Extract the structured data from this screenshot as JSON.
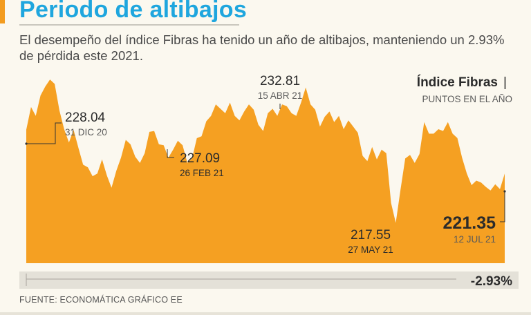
{
  "header": {
    "title": "Periodo de altibajos",
    "subtitle": "El desempeño del índice Fibras ha tenido un año de altibajos, manteniendo un 2.93% de pérdida este 2021."
  },
  "footer": {
    "source": "FUENTE: ECONOMÁTICA   GRÁFICO EE"
  },
  "colors": {
    "area": "#f5a022",
    "title": "#1fa6de",
    "text": "#2b2b2b",
    "muted": "#5a5a5a"
  },
  "chart_data": {
    "type": "area",
    "title": "Índice Fibras",
    "title_suffix": "|",
    "subtitle": "PUNTOS EN EL AÑO",
    "ylim": [
      213.0,
      235.5
    ],
    "values": [
      228.04,
      230.6,
      229.6,
      231.9,
      232.9,
      233.7,
      233.2,
      230.2,
      228.1,
      226.6,
      228.0,
      226.0,
      224.1,
      223.8,
      222.8,
      223.1,
      224.7,
      222.9,
      221.5,
      223.4,
      224.9,
      226.9,
      226.4,
      225.0,
      224.3,
      225.4,
      227.8,
      227.9,
      226.4,
      226.3,
      224.9,
      225.8,
      226.8,
      226.3,
      224.3,
      224.8,
      227.09,
      227.3,
      229.0,
      229.6,
      230.9,
      230.4,
      229.9,
      231.1,
      229.6,
      229.1,
      230.1,
      230.9,
      230.3,
      228.6,
      227.9,
      229.9,
      230.4,
      229.6,
      230.9,
      230.7,
      229.9,
      229.6,
      231.1,
      232.81,
      230.9,
      230.3,
      228.4,
      229.5,
      230.1,
      228.9,
      229.6,
      228.1,
      229.1,
      228.4,
      227.7,
      225.1,
      224.5,
      226.1,
      224.7,
      225.8,
      225.4,
      219.8,
      217.55,
      221.3,
      224.8,
      225.2,
      224.3,
      225.3,
      228.9,
      227.6,
      227.6,
      228.1,
      227.9,
      228.9,
      227.6,
      227.1,
      224.9,
      223.1,
      221.8,
      222.3,
      222.1,
      221.6,
      221.2,
      221.9,
      221.35,
      223.1
    ],
    "annotations": [
      {
        "value": "228.04",
        "date": "31 DIC 20"
      },
      {
        "value": "227.09",
        "date": "26 FEB 21"
      },
      {
        "value": "232.81",
        "date": "15 ABR 21"
      },
      {
        "value": "217.55",
        "date": "27 MAY 21"
      },
      {
        "value": "221.35",
        "date": "12 JUL 21"
      }
    ],
    "change_label": "-2.93%"
  }
}
